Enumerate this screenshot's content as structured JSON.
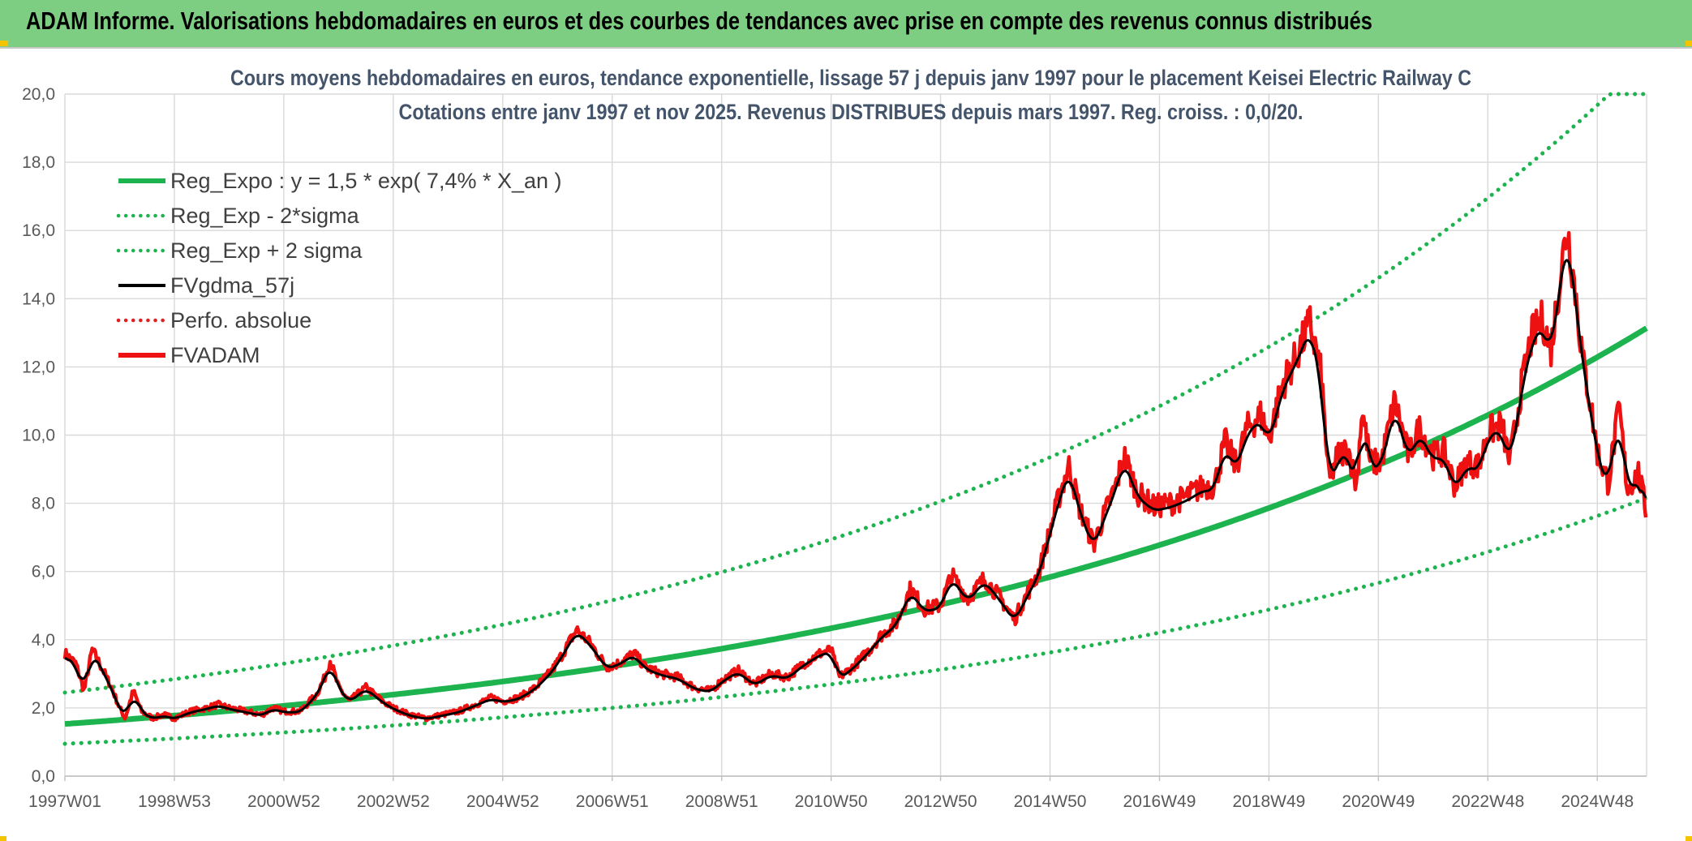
{
  "banner": {
    "title": "ADAM Informe. Valorisations hebdomadaires en euros et des courbes de tendances avec prise en compte des revenus connus distribués",
    "background": "#7dcd82"
  },
  "chart_data": {
    "type": "line",
    "title_line1": "Cours moyens hebdomadaires en euros, tendance exponentielle, lissage 57 j depuis janv 1997 pour le placement Keisei Electric Railway C",
    "title_line2": "Cotations entre janv 1997 et nov 2025. Revenus DISTRIBUES depuis mars 1997. Reg. croiss. : 0,0/20.",
    "xlabel": "",
    "ylabel": "",
    "x_range": [
      1997.0,
      2025.9
    ],
    "ylim": [
      0,
      20
    ],
    "y_ticks": [
      "0,0",
      "2,0",
      "4,0",
      "6,0",
      "8,0",
      "10,0",
      "12,0",
      "14,0",
      "16,0",
      "18,0",
      "20,0"
    ],
    "x_ticks": [
      {
        "label": "1997W01",
        "x": 1997.0
      },
      {
        "label": "1998W53",
        "x": 1999.0
      },
      {
        "label": "2000W52",
        "x": 2001.0
      },
      {
        "label": "2002W52",
        "x": 2003.0
      },
      {
        "label": "2004W52",
        "x": 2005.0
      },
      {
        "label": "2006W51",
        "x": 2007.0
      },
      {
        "label": "2008W51",
        "x": 2009.0
      },
      {
        "label": "2010W50",
        "x": 2011.0
      },
      {
        "label": "2012W50",
        "x": 2013.0
      },
      {
        "label": "2014W50",
        "x": 2015.0
      },
      {
        "label": "2016W49",
        "x": 2017.0
      },
      {
        "label": "2018W49",
        "x": 2019.0
      },
      {
        "label": "2020W49",
        "x": 2021.0
      },
      {
        "label": "2022W48",
        "x": 2023.0
      },
      {
        "label": "2024W48",
        "x": 2025.0
      }
    ],
    "grid": true,
    "legend_position": "top-left",
    "series": [
      {
        "name": "Reg_Expo : y = 1,5 * exp( 7,4% *  X_an )",
        "style": "solid",
        "color": "#1db34f",
        "kind": "expo",
        "a": 1.53,
        "rate": 0.0744
      },
      {
        "name": "Reg_Exp - 2*sigma",
        "style": "dotted",
        "color": "#1db34f",
        "kind": "expo",
        "a": 0.95,
        "rate": 0.0744
      },
      {
        "name": "Reg_Exp + 2 sigma",
        "style": "dotted",
        "color": "#1db34f",
        "kind": "expo",
        "a": 2.45,
        "rate": 0.0744,
        "cap": 20
      },
      {
        "name": "FVgdma_57j",
        "style": "solid",
        "color": "#000000",
        "kind": "smooth"
      },
      {
        "name": "Perfo. absolue",
        "style": "dotted",
        "color": "#e02020",
        "kind": "none"
      },
      {
        "name": "FVADAM",
        "style": "solid",
        "color": "#ee1111",
        "kind": "price",
        "points": [
          [
            1997.0,
            3.6
          ],
          [
            1997.2,
            3.3
          ],
          [
            1997.35,
            2.5
          ],
          [
            1997.5,
            3.7
          ],
          [
            1997.7,
            3.1
          ],
          [
            1997.85,
            2.6
          ],
          [
            1998.0,
            2.0
          ],
          [
            1998.1,
            1.7
          ],
          [
            1998.25,
            2.5
          ],
          [
            1998.4,
            1.9
          ],
          [
            1998.6,
            1.7
          ],
          [
            1998.8,
            1.8
          ],
          [
            1999.0,
            1.7
          ],
          [
            1999.3,
            1.9
          ],
          [
            1999.6,
            2.0
          ],
          [
            1999.8,
            2.1
          ],
          [
            2000.0,
            2.0
          ],
          [
            2000.3,
            1.9
          ],
          [
            2000.6,
            1.8
          ],
          [
            2000.8,
            2.0
          ],
          [
            2001.0,
            1.9
          ],
          [
            2001.3,
            1.9
          ],
          [
            2001.6,
            2.4
          ],
          [
            2001.75,
            2.9
          ],
          [
            2001.85,
            3.4
          ],
          [
            2002.0,
            2.6
          ],
          [
            2002.2,
            2.2
          ],
          [
            2002.5,
            2.6
          ],
          [
            2002.8,
            2.2
          ],
          [
            2003.0,
            2.0
          ],
          [
            2003.3,
            1.8
          ],
          [
            2003.6,
            1.7
          ],
          [
            2003.9,
            1.8
          ],
          [
            2004.2,
            1.9
          ],
          [
            2004.5,
            2.1
          ],
          [
            2004.8,
            2.3
          ],
          [
            2005.0,
            2.2
          ],
          [
            2005.3,
            2.3
          ],
          [
            2005.6,
            2.6
          ],
          [
            2005.9,
            3.1
          ],
          [
            2006.1,
            3.6
          ],
          [
            2006.35,
            4.3
          ],
          [
            2006.6,
            3.9
          ],
          [
            2006.9,
            3.2
          ],
          [
            2007.1,
            3.3
          ],
          [
            2007.4,
            3.6
          ],
          [
            2007.6,
            3.2
          ],
          [
            2007.9,
            3.0
          ],
          [
            2008.2,
            2.9
          ],
          [
            2008.5,
            2.6
          ],
          [
            2008.8,
            2.5
          ],
          [
            2009.0,
            2.8
          ],
          [
            2009.3,
            3.1
          ],
          [
            2009.6,
            2.7
          ],
          [
            2009.9,
            3.0
          ],
          [
            2010.2,
            2.9
          ],
          [
            2010.5,
            3.3
          ],
          [
            2010.8,
            3.6
          ],
          [
            2011.0,
            3.7
          ],
          [
            2011.15,
            2.9
          ],
          [
            2011.4,
            3.2
          ],
          [
            2011.7,
            3.7
          ],
          [
            2011.9,
            4.1
          ],
          [
            2012.2,
            4.5
          ],
          [
            2012.45,
            5.5
          ],
          [
            2012.7,
            4.9
          ],
          [
            2013.0,
            5.0
          ],
          [
            2013.2,
            5.9
          ],
          [
            2013.5,
            5.2
          ],
          [
            2013.8,
            5.8
          ],
          [
            2014.1,
            5.2
          ],
          [
            2014.35,
            4.6
          ],
          [
            2014.6,
            5.4
          ],
          [
            2014.8,
            6.0
          ],
          [
            2015.0,
            7.2
          ],
          [
            2015.2,
            8.4
          ],
          [
            2015.35,
            9.1
          ],
          [
            2015.55,
            7.8
          ],
          [
            2015.8,
            6.8
          ],
          [
            2016.0,
            7.7
          ],
          [
            2016.2,
            8.5
          ],
          [
            2016.35,
            9.4
          ],
          [
            2016.6,
            8.3
          ],
          [
            2016.9,
            7.9
          ],
          [
            2017.2,
            8.0
          ],
          [
            2017.5,
            8.2
          ],
          [
            2017.8,
            8.5
          ],
          [
            2018.0,
            8.5
          ],
          [
            2018.2,
            9.8
          ],
          [
            2018.4,
            9.1
          ],
          [
            2018.6,
            10.2
          ],
          [
            2018.85,
            10.6
          ],
          [
            2019.0,
            9.9
          ],
          [
            2019.25,
            11.5
          ],
          [
            2019.5,
            12.3
          ],
          [
            2019.75,
            13.3
          ],
          [
            2019.95,
            11.8
          ],
          [
            2020.1,
            8.6
          ],
          [
            2020.25,
            9.4
          ],
          [
            2020.45,
            9.6
          ],
          [
            2020.6,
            8.5
          ],
          [
            2020.7,
            10.8
          ],
          [
            2020.85,
            9.2
          ],
          [
            2021.05,
            9.2
          ],
          [
            2021.3,
            11.0
          ],
          [
            2021.55,
            9.4
          ],
          [
            2021.75,
            10.2
          ],
          [
            2022.0,
            9.4
          ],
          [
            2022.2,
            9.5
          ],
          [
            2022.4,
            8.5
          ],
          [
            2022.6,
            9.2
          ],
          [
            2022.85,
            9.1
          ],
          [
            2023.0,
            10.1
          ],
          [
            2023.25,
            10.3
          ],
          [
            2023.4,
            9.2
          ],
          [
            2023.6,
            11.3
          ],
          [
            2023.8,
            12.9
          ],
          [
            2024.0,
            13.4
          ],
          [
            2024.15,
            12.5
          ],
          [
            2024.35,
            15.0
          ],
          [
            2024.45,
            16.1
          ],
          [
            2024.6,
            14.2
          ],
          [
            2024.75,
            12.0
          ],
          [
            2024.85,
            11.2
          ],
          [
            2025.0,
            9.5
          ],
          [
            2025.2,
            8.6
          ],
          [
            2025.4,
            10.8
          ],
          [
            2025.55,
            8.4
          ],
          [
            2025.75,
            8.9
          ],
          [
            2025.9,
            7.7
          ]
        ]
      }
    ]
  }
}
